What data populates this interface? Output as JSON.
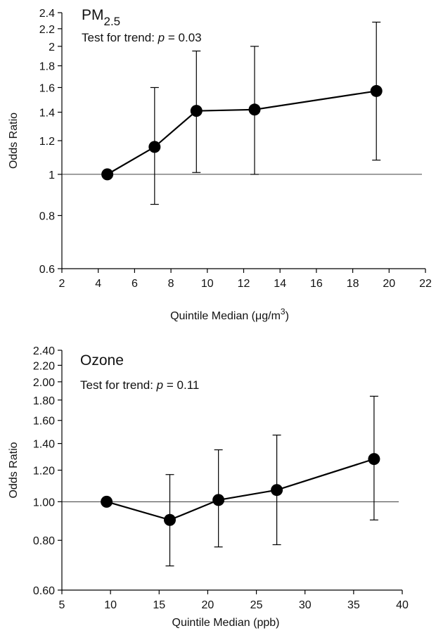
{
  "chart_data": [
    {
      "type": "line",
      "title": "PM",
      "title_subscript": "2.5",
      "subtitle_prefix": "Test for trend: ",
      "subtitle_p": "p",
      "subtitle_suffix": " = 0.03",
      "xlabel_prefix": "Quintile Median (",
      "xlabel_mu": "μ",
      "xlabel_unit": "g/m",
      "xlabel_sup": "3",
      "xlabel_suffix": ")",
      "ylabel": "Odds Ratio",
      "y_scale": "log",
      "xlim": [
        2,
        22
      ],
      "ylim": [
        0.6,
        2.4
      ],
      "x_ticks": [
        2,
        4,
        6,
        8,
        10,
        12,
        14,
        16,
        18,
        20,
        22
      ],
      "x_tick_labels": [
        "2",
        "4",
        "6",
        "8",
        "10",
        "12",
        "14",
        "16",
        "18",
        "20",
        "22"
      ],
      "y_ticks": [
        0.6,
        0.8,
        1,
        1.2,
        1.4,
        1.6,
        1.8,
        2,
        2.2,
        2.4
      ],
      "y_tick_labels": [
        "0.6",
        "0.8",
        "1",
        "1.2",
        "1.4",
        "1.6",
        "1.8",
        "2",
        "2.2",
        "2.4"
      ],
      "reference_line_y": 1,
      "series": [
        {
          "x": [
            4.5,
            7.1,
            9.4,
            12.6,
            19.3
          ],
          "y": [
            1.0,
            1.16,
            1.41,
            1.42,
            1.57
          ],
          "ci_low": [
            null,
            0.85,
            1.01,
            1.0,
            1.08
          ],
          "ci_high": [
            null,
            1.6,
            1.95,
            2.0,
            2.28
          ]
        }
      ]
    },
    {
      "type": "line",
      "title": "Ozone",
      "subtitle_prefix": "Test for trend: ",
      "subtitle_p": "p",
      "subtitle_suffix": " = 0.11",
      "xlabel": "Quintile Median (ppb)",
      "ylabel": "Odds Ratio",
      "y_scale": "log",
      "xlim": [
        5,
        40
      ],
      "ylim": [
        0.6,
        2.4
      ],
      "x_ticks": [
        5,
        10,
        15,
        20,
        25,
        30,
        35,
        40
      ],
      "x_tick_labels": [
        "5",
        "10",
        "15",
        "20",
        "25",
        "30",
        "35",
        "40"
      ],
      "y_ticks": [
        0.6,
        0.8,
        1,
        1.2,
        1.4,
        1.6,
        1.8,
        2,
        2.2,
        2.4
      ],
      "y_tick_labels": [
        "0.60",
        "0.80",
        "1.00",
        "1.20",
        "1.40",
        "1.60",
        "1.80",
        "2.00",
        "2.20",
        "2.40"
      ],
      "reference_line_y": 1,
      "series": [
        {
          "x": [
            9.6,
            16.1,
            21.1,
            27.1,
            37.1
          ],
          "y": [
            1.0,
            0.9,
            1.01,
            1.07,
            1.28
          ],
          "ci_low": [
            null,
            0.69,
            0.77,
            0.78,
            0.9
          ],
          "ci_high": [
            null,
            1.17,
            1.35,
            1.47,
            1.84
          ]
        }
      ]
    }
  ]
}
